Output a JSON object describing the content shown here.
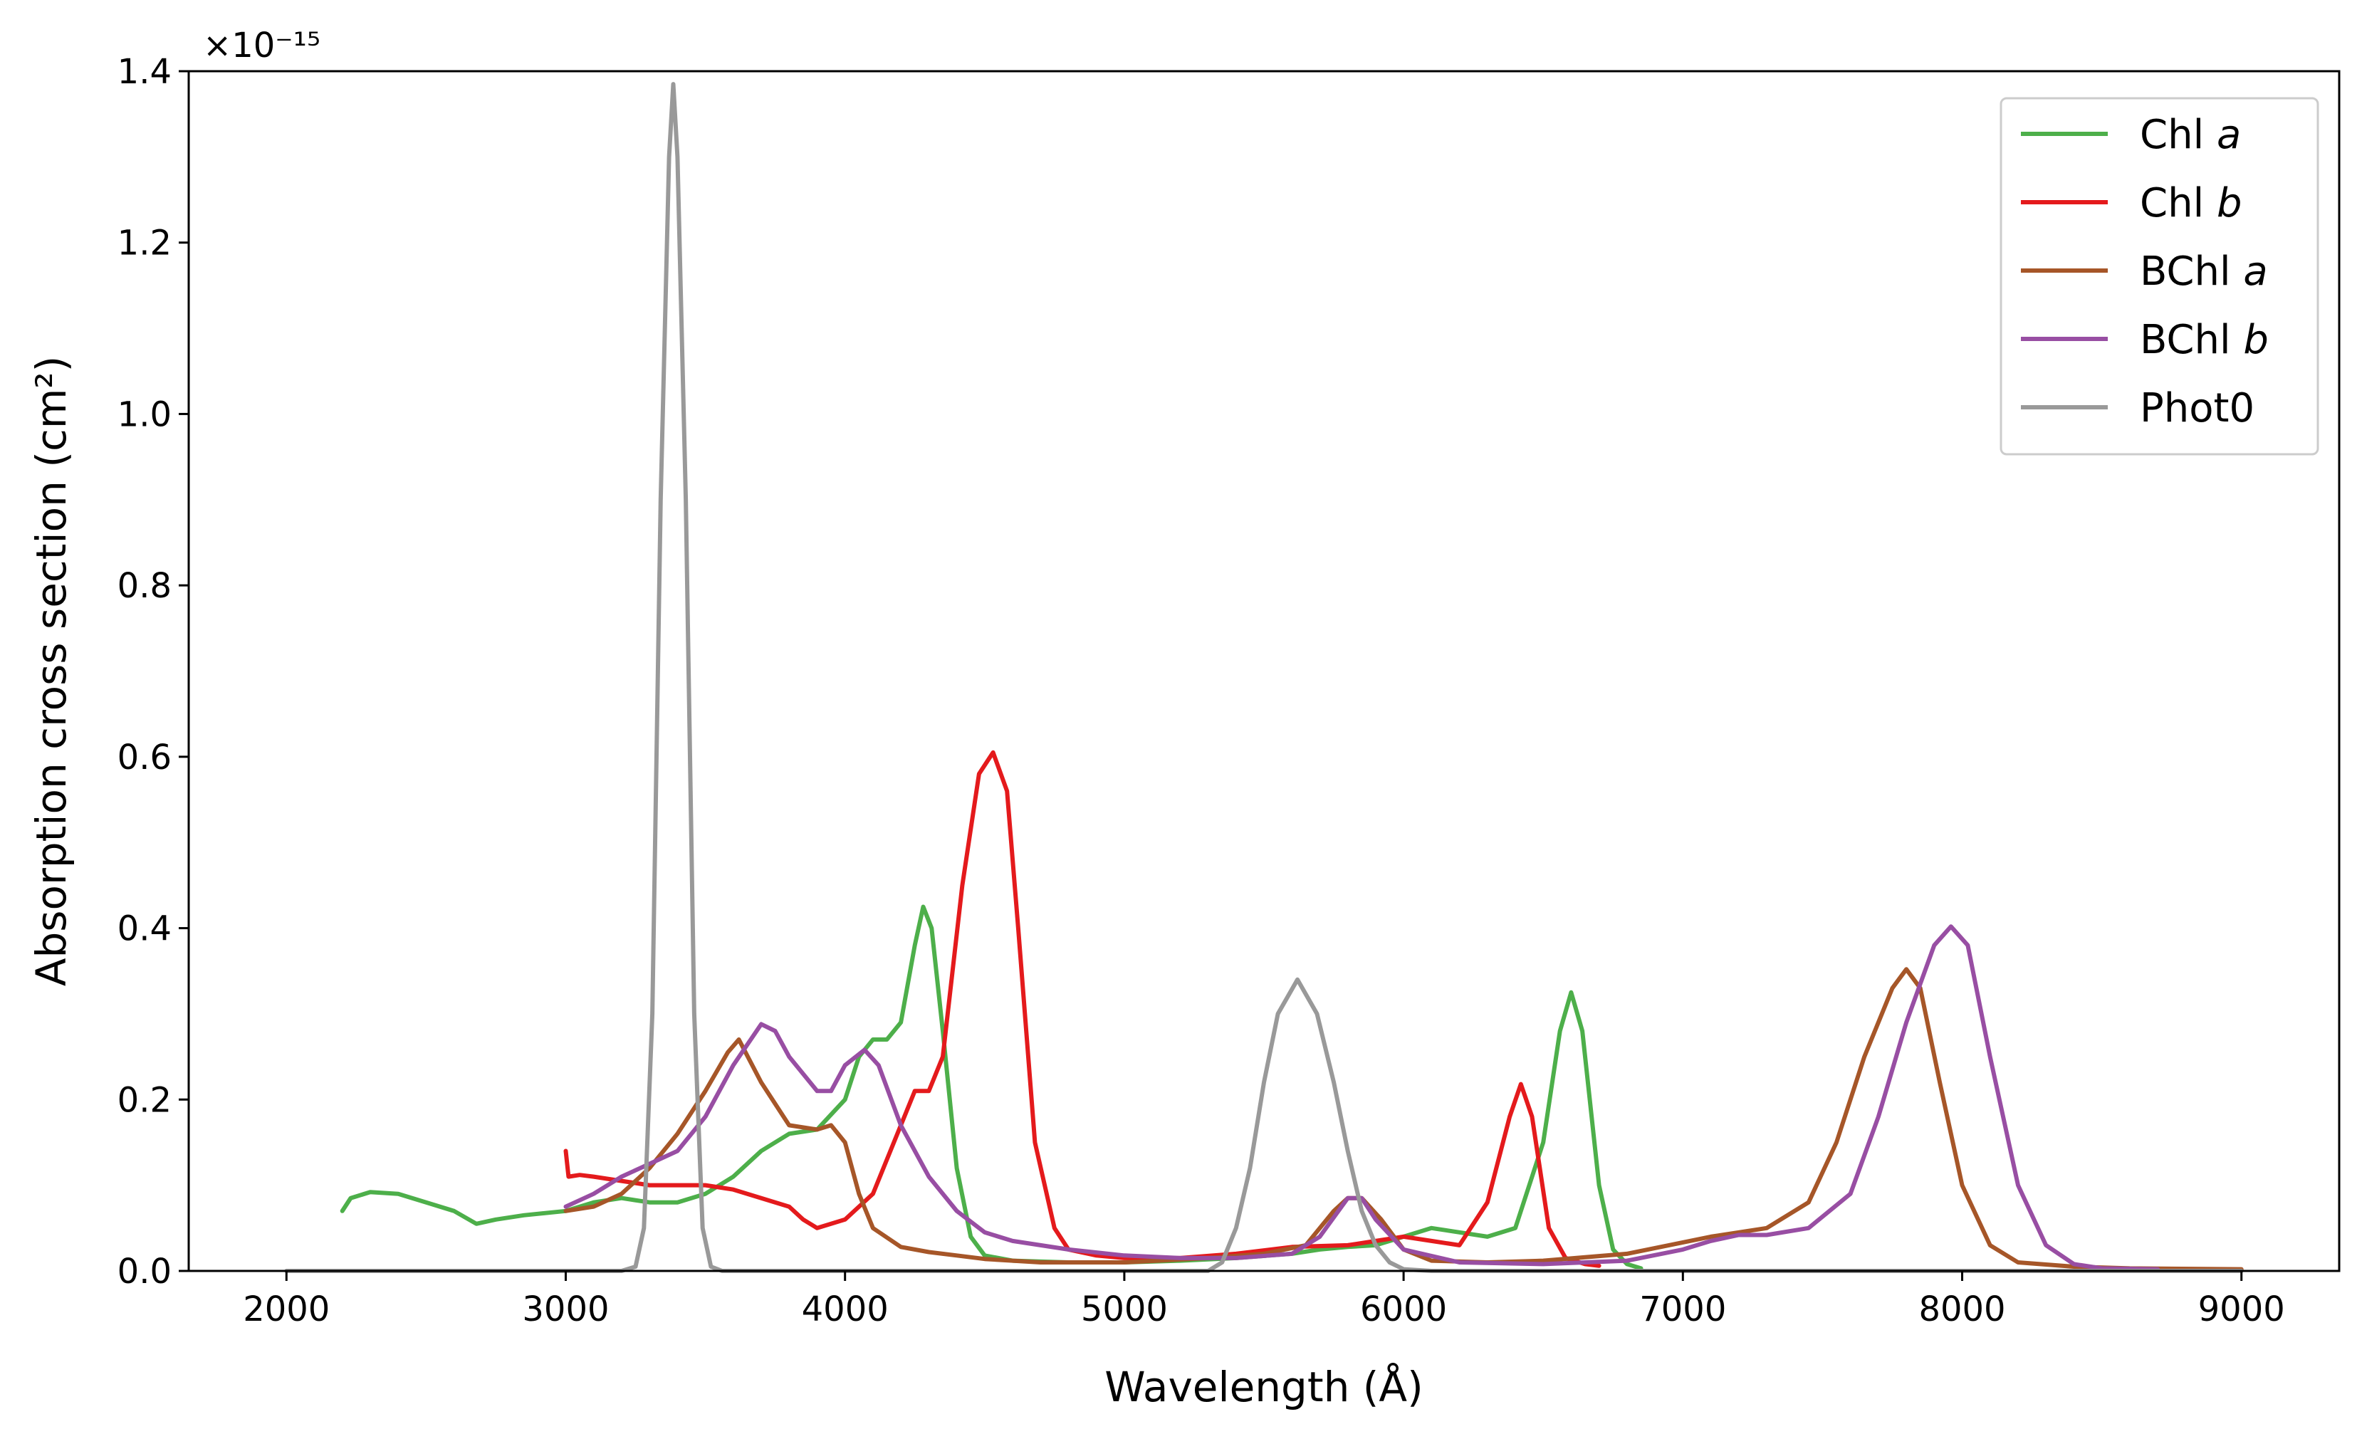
{
  "chart_data": {
    "type": "line",
    "title": "",
    "xlabel": "Wavelength (Å)",
    "ylabel": "Absorption cross section (cm²)",
    "y_offset_label": "×10⁻¹⁵",
    "y_scale": 1e-15,
    "xlim": [
      1650,
      9350
    ],
    "ylim": [
      0,
      1.4
    ],
    "xticks": [
      2000,
      3000,
      4000,
      5000,
      6000,
      7000,
      8000,
      9000
    ],
    "xtick_labels": [
      "2000",
      "3000",
      "4000",
      "5000",
      "6000",
      "7000",
      "8000",
      "9000"
    ],
    "yticks": [
      0.0,
      0.2,
      0.4,
      0.6,
      0.8,
      1.0,
      1.2,
      1.4
    ],
    "ytick_labels": [
      "0.0",
      "0.2",
      "0.4",
      "0.6",
      "0.8",
      "1.0",
      "1.2",
      "1.4"
    ],
    "grid": false,
    "legend_position": "top-right",
    "series": [
      {
        "name": "Chl a",
        "name_main": "Chl ",
        "name_italic": "a",
        "color": "#4daf4a",
        "points": [
          [
            2200,
            0.07
          ],
          [
            2230,
            0.085
          ],
          [
            2300,
            0.092
          ],
          [
            2400,
            0.09
          ],
          [
            2500,
            0.08
          ],
          [
            2600,
            0.07
          ],
          [
            2680,
            0.055
          ],
          [
            2750,
            0.06
          ],
          [
            2850,
            0.065
          ],
          [
            3000,
            0.07
          ],
          [
            3100,
            0.08
          ],
          [
            3200,
            0.085
          ],
          [
            3300,
            0.08
          ],
          [
            3400,
            0.08
          ],
          [
            3500,
            0.09
          ],
          [
            3600,
            0.11
          ],
          [
            3700,
            0.14
          ],
          [
            3800,
            0.16
          ],
          [
            3900,
            0.165
          ],
          [
            4000,
            0.2
          ],
          [
            4050,
            0.25
          ],
          [
            4100,
            0.27
          ],
          [
            4150,
            0.27
          ],
          [
            4200,
            0.29
          ],
          [
            4250,
            0.38
          ],
          [
            4280,
            0.425
          ],
          [
            4310,
            0.4
          ],
          [
            4350,
            0.28
          ],
          [
            4400,
            0.12
          ],
          [
            4450,
            0.04
          ],
          [
            4500,
            0.018
          ],
          [
            4600,
            0.012
          ],
          [
            4800,
            0.01
          ],
          [
            5000,
            0.01
          ],
          [
            5200,
            0.012
          ],
          [
            5400,
            0.015
          ],
          [
            5600,
            0.02
          ],
          [
            5700,
            0.025
          ],
          [
            5800,
            0.028
          ],
          [
            5900,
            0.03
          ],
          [
            6000,
            0.04
          ],
          [
            6100,
            0.05
          ],
          [
            6200,
            0.045
          ],
          [
            6300,
            0.04
          ],
          [
            6400,
            0.05
          ],
          [
            6500,
            0.15
          ],
          [
            6560,
            0.28
          ],
          [
            6600,
            0.325
          ],
          [
            6640,
            0.28
          ],
          [
            6700,
            0.1
          ],
          [
            6750,
            0.025
          ],
          [
            6800,
            0.008
          ],
          [
            6850,
            0.003
          ]
        ]
      },
      {
        "name": "Chl b",
        "name_main": "Chl ",
        "name_italic": "b",
        "color": "#e41a1c",
        "points": [
          [
            3000,
            0.14
          ],
          [
            3010,
            0.11
          ],
          [
            3050,
            0.112
          ],
          [
            3100,
            0.11
          ],
          [
            3200,
            0.105
          ],
          [
            3300,
            0.1
          ],
          [
            3400,
            0.1
          ],
          [
            3500,
            0.1
          ],
          [
            3600,
            0.095
          ],
          [
            3700,
            0.085
          ],
          [
            3800,
            0.075
          ],
          [
            3850,
            0.06
          ],
          [
            3900,
            0.05
          ],
          [
            4000,
            0.06
          ],
          [
            4100,
            0.09
          ],
          [
            4200,
            0.17
          ],
          [
            4250,
            0.21
          ],
          [
            4300,
            0.21
          ],
          [
            4350,
            0.25
          ],
          [
            4420,
            0.45
          ],
          [
            4480,
            0.58
          ],
          [
            4530,
            0.605
          ],
          [
            4580,
            0.56
          ],
          [
            4620,
            0.4
          ],
          [
            4680,
            0.15
          ],
          [
            4750,
            0.05
          ],
          [
            4800,
            0.025
          ],
          [
            4900,
            0.018
          ],
          [
            5000,
            0.015
          ],
          [
            5200,
            0.015
          ],
          [
            5400,
            0.02
          ],
          [
            5600,
            0.028
          ],
          [
            5800,
            0.03
          ],
          [
            5900,
            0.035
          ],
          [
            6000,
            0.04
          ],
          [
            6100,
            0.035
          ],
          [
            6200,
            0.03
          ],
          [
            6300,
            0.08
          ],
          [
            6380,
            0.18
          ],
          [
            6420,
            0.218
          ],
          [
            6460,
            0.18
          ],
          [
            6520,
            0.05
          ],
          [
            6580,
            0.015
          ],
          [
            6650,
            0.008
          ],
          [
            6700,
            0.006
          ]
        ]
      },
      {
        "name": "BChl a",
        "name_main": "BChl ",
        "name_italic": "a",
        "color": "#a65628",
        "points": [
          [
            3000,
            0.07
          ],
          [
            3100,
            0.075
          ],
          [
            3200,
            0.09
          ],
          [
            3300,
            0.12
          ],
          [
            3400,
            0.16
          ],
          [
            3500,
            0.21
          ],
          [
            3580,
            0.255
          ],
          [
            3620,
            0.27
          ],
          [
            3700,
            0.22
          ],
          [
            3800,
            0.17
          ],
          [
            3900,
            0.165
          ],
          [
            3950,
            0.17
          ],
          [
            4000,
            0.15
          ],
          [
            4050,
            0.09
          ],
          [
            4100,
            0.05
          ],
          [
            4200,
            0.028
          ],
          [
            4300,
            0.022
          ],
          [
            4400,
            0.018
          ],
          [
            4500,
            0.014
          ],
          [
            4700,
            0.01
          ],
          [
            5000,
            0.01
          ],
          [
            5300,
            0.015
          ],
          [
            5500,
            0.02
          ],
          [
            5650,
            0.03
          ],
          [
            5750,
            0.07
          ],
          [
            5800,
            0.085
          ],
          [
            5850,
            0.085
          ],
          [
            5920,
            0.06
          ],
          [
            6000,
            0.025
          ],
          [
            6100,
            0.012
          ],
          [
            6300,
            0.01
          ],
          [
            6500,
            0.012
          ],
          [
            6800,
            0.02
          ],
          [
            6950,
            0.03
          ],
          [
            7100,
            0.04
          ],
          [
            7300,
            0.05
          ],
          [
            7450,
            0.08
          ],
          [
            7550,
            0.15
          ],
          [
            7650,
            0.25
          ],
          [
            7750,
            0.33
          ],
          [
            7800,
            0.352
          ],
          [
            7850,
            0.33
          ],
          [
            7920,
            0.22
          ],
          [
            8000,
            0.1
          ],
          [
            8100,
            0.03
          ],
          [
            8200,
            0.01
          ],
          [
            8400,
            0.005
          ],
          [
            8600,
            0.003
          ],
          [
            9000,
            0.002
          ]
        ]
      },
      {
        "name": "BChl b",
        "name_main": "BChl ",
        "name_italic": "b",
        "color": "#984ea3",
        "points": [
          [
            3000,
            0.075
          ],
          [
            3100,
            0.09
          ],
          [
            3200,
            0.11
          ],
          [
            3300,
            0.125
          ],
          [
            3400,
            0.14
          ],
          [
            3500,
            0.18
          ],
          [
            3600,
            0.24
          ],
          [
            3700,
            0.288
          ],
          [
            3750,
            0.28
          ],
          [
            3800,
            0.25
          ],
          [
            3900,
            0.21
          ],
          [
            3950,
            0.21
          ],
          [
            4000,
            0.24
          ],
          [
            4070,
            0.258
          ],
          [
            4120,
            0.24
          ],
          [
            4200,
            0.17
          ],
          [
            4300,
            0.11
          ],
          [
            4400,
            0.07
          ],
          [
            4500,
            0.045
          ],
          [
            4600,
            0.035
          ],
          [
            4800,
            0.025
          ],
          [
            5000,
            0.018
          ],
          [
            5200,
            0.015
          ],
          [
            5400,
            0.015
          ],
          [
            5600,
            0.02
          ],
          [
            5700,
            0.04
          ],
          [
            5800,
            0.085
          ],
          [
            5850,
            0.085
          ],
          [
            5900,
            0.06
          ],
          [
            6000,
            0.025
          ],
          [
            6200,
            0.01
          ],
          [
            6500,
            0.008
          ],
          [
            6800,
            0.012
          ],
          [
            7000,
            0.025
          ],
          [
            7100,
            0.035
          ],
          [
            7200,
            0.042
          ],
          [
            7300,
            0.042
          ],
          [
            7450,
            0.05
          ],
          [
            7600,
            0.09
          ],
          [
            7700,
            0.18
          ],
          [
            7800,
            0.29
          ],
          [
            7900,
            0.38
          ],
          [
            7960,
            0.402
          ],
          [
            8020,
            0.38
          ],
          [
            8100,
            0.25
          ],
          [
            8200,
            0.1
          ],
          [
            8300,
            0.03
          ],
          [
            8400,
            0.008
          ],
          [
            8500,
            0.003
          ],
          [
            8700,
            0.002
          ]
        ]
      },
      {
        "name": "Phot0",
        "name_main": "Phot0",
        "name_italic": "",
        "color": "#999999",
        "points": [
          [
            2000,
            0
          ],
          [
            3200,
            0
          ],
          [
            3250,
            0.005
          ],
          [
            3280,
            0.05
          ],
          [
            3310,
            0.3
          ],
          [
            3340,
            0.9
          ],
          [
            3370,
            1.3
          ],
          [
            3385,
            1.385
          ],
          [
            3400,
            1.3
          ],
          [
            3430,
            0.9
          ],
          [
            3460,
            0.3
          ],
          [
            3490,
            0.05
          ],
          [
            3520,
            0.005
          ],
          [
            3560,
            0
          ],
          [
            5300,
            0
          ],
          [
            5350,
            0.01
          ],
          [
            5400,
            0.05
          ],
          [
            5450,
            0.12
          ],
          [
            5500,
            0.22
          ],
          [
            5550,
            0.3
          ],
          [
            5620,
            0.34
          ],
          [
            5690,
            0.3
          ],
          [
            5750,
            0.22
          ],
          [
            5800,
            0.14
          ],
          [
            5850,
            0.07
          ],
          [
            5900,
            0.03
          ],
          [
            5950,
            0.01
          ],
          [
            6000,
            0.002
          ],
          [
            6100,
            0
          ],
          [
            9000,
            0
          ]
        ]
      }
    ]
  }
}
